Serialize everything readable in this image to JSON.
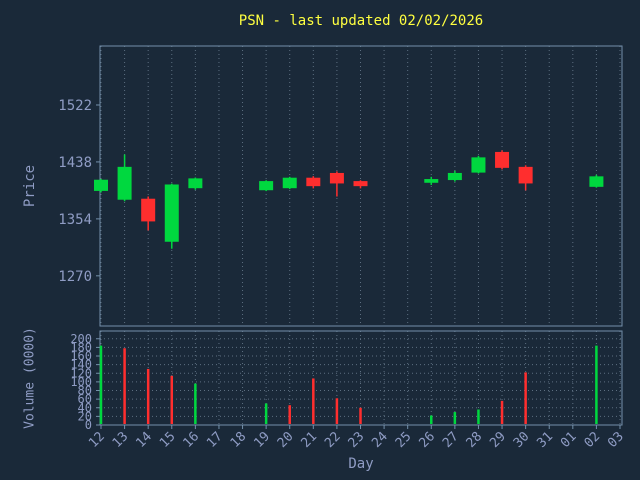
{
  "colors": {
    "background": "#1a2939",
    "border": "#7490ab",
    "grid": "#5d6f81",
    "tick_label": "#8f9cc4",
    "title": "#ffff40",
    "up": "#00d83f",
    "down": "#ff2e2e"
  },
  "chart_data": {
    "type": "candlestick",
    "title": "PSN - last updated 02/02/2026",
    "xlabel": "Day",
    "price_axis": {
      "label": "Price",
      "ticks": [
        1270,
        1354,
        1438,
        1522
      ],
      "range": [
        1196,
        1609
      ]
    },
    "volume_axis": {
      "label": "Volume (0000)",
      "ticks": [
        0,
        20,
        40,
        60,
        80,
        100,
        120,
        140,
        160,
        180,
        200
      ],
      "range": [
        0,
        218
      ]
    },
    "categories": [
      "12",
      "13",
      "14",
      "15",
      "16",
      "17",
      "18",
      "19",
      "20",
      "21",
      "22",
      "23",
      "24",
      "25",
      "26",
      "27",
      "28",
      "29",
      "30",
      "31",
      "01",
      "02",
      "03"
    ],
    "candles": [
      {
        "day": "12",
        "open": 1396,
        "high": 1413,
        "low": 1393,
        "close": 1411,
        "volume": 184,
        "volume_dir": "up"
      },
      {
        "day": "13",
        "open": 1383,
        "high": 1449,
        "low": 1380,
        "close": 1430,
        "volume": 178,
        "volume_dir": "down"
      },
      {
        "day": "14",
        "open": 1383,
        "high": 1387,
        "low": 1337,
        "close": 1351,
        "volume": 130,
        "volume_dir": "down"
      },
      {
        "day": "15",
        "open": 1321,
        "high": 1406,
        "low": 1310,
        "close": 1404,
        "volume": 114,
        "volume_dir": "down"
      },
      {
        "day": "16",
        "open": 1400,
        "high": 1415,
        "low": 1397,
        "close": 1413,
        "volume": 96,
        "volume_dir": "up"
      },
      {
        "day": "19",
        "open": 1397,
        "high": 1411,
        "low": 1395,
        "close": 1409,
        "volume": 50,
        "volume_dir": "up"
      },
      {
        "day": "20",
        "open": 1400,
        "high": 1416,
        "low": 1398,
        "close": 1414,
        "volume": 46,
        "volume_dir": "down"
      },
      {
        "day": "21",
        "open": 1414,
        "high": 1417,
        "low": 1399,
        "close": 1403,
        "volume": 108,
        "volume_dir": "down"
      },
      {
        "day": "22",
        "open": 1421,
        "high": 1424,
        "low": 1387,
        "close": 1407,
        "volume": 62,
        "volume_dir": "down"
      },
      {
        "day": "23",
        "open": 1409,
        "high": 1411,
        "low": 1399,
        "close": 1403,
        "volume": 40,
        "volume_dir": "down"
      },
      {
        "day": "26",
        "open": 1408,
        "high": 1416,
        "low": 1404,
        "close": 1412,
        "volume": 22,
        "volume_dir": "up"
      },
      {
        "day": "27",
        "open": 1412,
        "high": 1425,
        "low": 1409,
        "close": 1421,
        "volume": 30,
        "volume_dir": "up"
      },
      {
        "day": "28",
        "open": 1423,
        "high": 1447,
        "low": 1421,
        "close": 1444,
        "volume": 36,
        "volume_dir": "up"
      },
      {
        "day": "29",
        "open": 1452,
        "high": 1455,
        "low": 1427,
        "close": 1430,
        "volume": 56,
        "volume_dir": "down"
      },
      {
        "day": "30",
        "open": 1430,
        "high": 1433,
        "low": 1396,
        "close": 1407,
        "volume": 122,
        "volume_dir": "down"
      },
      {
        "day": "02",
        "open": 1402,
        "high": 1419,
        "low": 1400,
        "close": 1416,
        "volume": 184,
        "volume_dir": "up"
      }
    ]
  }
}
